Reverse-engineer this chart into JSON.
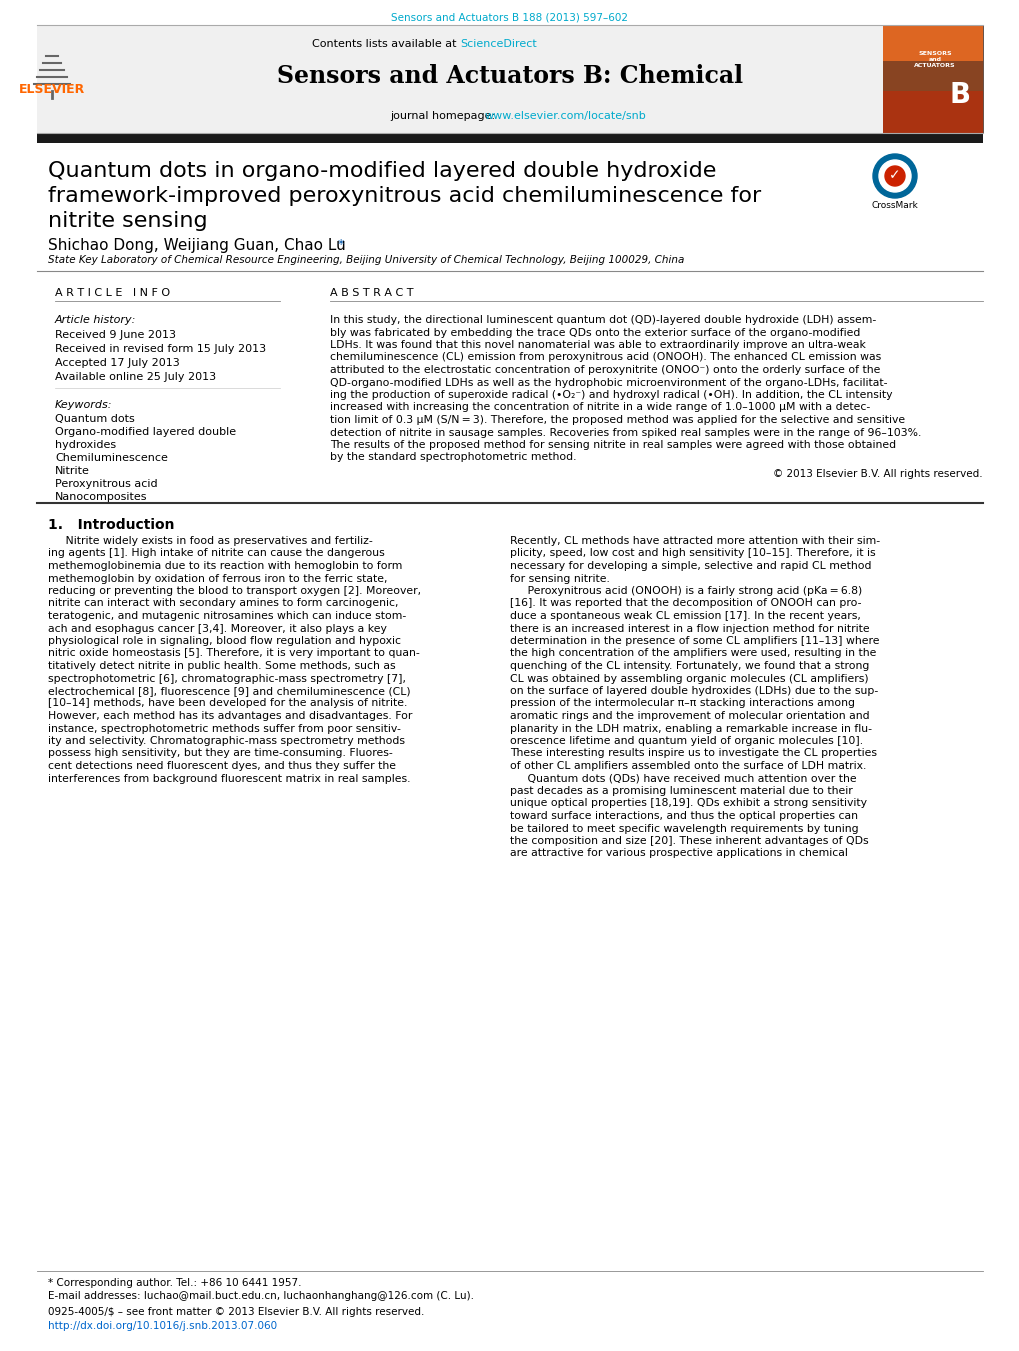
{
  "journal_ref": "Sensors and Actuators B 188 (2013) 597–602",
  "journal_ref_color": "#00AACC",
  "header_bg": "#F0F0F0",
  "contents_text": "Contents lists available at ",
  "sciencedirect_text": "ScienceDirect",
  "sciencedirect_color": "#00AACC",
  "journal_name": "Sensors and Actuators B: Chemical",
  "journal_homepage_text": "journal homepage: ",
  "journal_url": "www.elsevier.com/locate/snb",
  "journal_url_color": "#00AACC",
  "elsevier_color": "#FF6600",
  "title_bar_color": "#1A1A1A",
  "article_title_line1": "Quantum dots in organo-modified layered double hydroxide",
  "article_title_line2": "framework-improved peroxynitrous acid chemiluminescence for",
  "article_title_line3": "nitrite sensing",
  "authors": "Shichao Dong, Weijiang Guan, Chao Lu",
  "affiliation": "State Key Laboratory of Chemical Resource Engineering, Beijing University of Chemical Technology, Beijing 100029, China",
  "article_info_header": "A R T I C L E   I N F O",
  "abstract_header": "A B S T R A C T",
  "article_history_label": "Article history:",
  "received_1": "Received 9 June 2013",
  "received_revised": "Received in revised form 15 July 2013",
  "accepted": "Accepted 17 July 2013",
  "available_online": "Available online 25 July 2013",
  "keywords_label": "Keywords:",
  "keywords": [
    "Quantum dots",
    "Organo-modified layered double",
    "hydroxides",
    "Chemiluminescence",
    "Nitrite",
    "Peroxynitrous acid",
    "Nanocomposites"
  ],
  "copyright_text": "© 2013 Elsevier B.V. All rights reserved.",
  "intro_header": "1.   Introduction",
  "footnote_text": "* Corresponding author. Tel.: +86 10 6441 1957.",
  "footnote_email": "E-mail addresses: luchao@mail.buct.edu.cn, luchaonhanghang@126.com (C. Lu).",
  "issn_text": "0925-4005/$ – see front matter © 2013 Elsevier B.V. All rights reserved.",
  "doi_text": "http://dx.doi.org/10.1016/j.snb.2013.07.060",
  "doi_color": "#0066CC",
  "bg_color": "#FFFFFF",
  "text_color": "#000000",
  "abstract_lines": [
    "In this study, the directional luminescent quantum dot (QD)-layered double hydroxide (LDH) assem-",
    "bly was fabricated by embedding the trace QDs onto the exterior surface of the organo-modified",
    "LDHs. It was found that this novel nanomaterial was able to extraordinarily improve an ultra-weak",
    "chemiluminescence (CL) emission from peroxynitrous acid (ONOOH). The enhanced CL emission was",
    "attributed to the electrostatic concentration of peroxynitrite (ONOO⁻) onto the orderly surface of the",
    "QD-organo-modified LDHs as well as the hydrophobic microenvironment of the organo-LDHs, facilitat-",
    "ing the production of superoxide radical (•O₂⁻) and hydroxyl radical (•OH). In addition, the CL intensity",
    "increased with increasing the concentration of nitrite in a wide range of 1.0–1000 μM with a detec-",
    "tion limit of 0.3 μM (S/N = 3). Therefore, the proposed method was applied for the selective and sensitive",
    "detection of nitrite in sausage samples. Recoveries from spiked real samples were in the range of 96–103%.",
    "The results of the proposed method for sensing nitrite in real samples were agreed with those obtained",
    "by the standard spectrophotometric method."
  ],
  "intro_col1_lines": [
    "     Nitrite widely exists in food as preservatives and fertiliz-",
    "ing agents [1]. High intake of nitrite can cause the dangerous",
    "methemoglobinemia due to its reaction with hemoglobin to form",
    "methemoglobin by oxidation of ferrous iron to the ferric state,",
    "reducing or preventing the blood to transport oxygen [2]. Moreover,",
    "nitrite can interact with secondary amines to form carcinogenic,",
    "teratogenic, and mutagenic nitrosamines which can induce stom-",
    "ach and esophagus cancer [3,4]. Moreover, it also plays a key",
    "physiological role in signaling, blood flow regulation and hypoxic",
    "nitric oxide homeostasis [5]. Therefore, it is very important to quan-",
    "titatively detect nitrite in public health. Some methods, such as",
    "spectrophotometric [6], chromatographic-mass spectrometry [7],",
    "electrochemical [8], fluorescence [9] and chemiluminescence (CL)",
    "[10–14] methods, have been developed for the analysis of nitrite.",
    "However, each method has its advantages and disadvantages. For",
    "instance, spectrophotometric methods suffer from poor sensitiv-",
    "ity and selectivity. Chromatographic-mass spectrometry methods",
    "possess high sensitivity, but they are time-consuming. Fluores-",
    "cent detections need fluorescent dyes, and thus they suffer the",
    "interferences from background fluorescent matrix in real samples."
  ],
  "intro_col2_lines": [
    "Recently, CL methods have attracted more attention with their sim-",
    "plicity, speed, low cost and high sensitivity [10–15]. Therefore, it is",
    "necessary for developing a simple, selective and rapid CL method",
    "for sensing nitrite.",
    "     Peroxynitrous acid (ONOOH) is a fairly strong acid (pKa = 6.8)",
    "[16]. It was reported that the decomposition of ONOOH can pro-",
    "duce a spontaneous weak CL emission [17]. In the recent years,",
    "there is an increased interest in a flow injection method for nitrite",
    "determination in the presence of some CL amplifiers [11–13] where",
    "the high concentration of the amplifiers were used, resulting in the",
    "quenching of the CL intensity. Fortunately, we found that a strong",
    "CL was obtained by assembling organic molecules (CL amplifiers)",
    "on the surface of layered double hydroxides (LDHs) due to the sup-",
    "pression of the intermolecular π–π stacking interactions among",
    "aromatic rings and the improvement of molecular orientation and",
    "planarity in the LDH matrix, enabling a remarkable increase in flu-",
    "orescence lifetime and quantum yield of organic molecules [10].",
    "These interesting results inspire us to investigate the CL properties",
    "of other CL amplifiers assembled onto the surface of LDH matrix.",
    "     Quantum dots (QDs) have received much attention over the",
    "past decades as a promising luminescent material due to their",
    "unique optical properties [18,19]. QDs exhibit a strong sensitivity",
    "toward surface interactions, and thus the optical properties can",
    "be tailored to meet specific wavelength requirements by tuning",
    "the composition and size [20]. These inherent advantages of QDs",
    "are attractive for various prospective applications in chemical"
  ]
}
